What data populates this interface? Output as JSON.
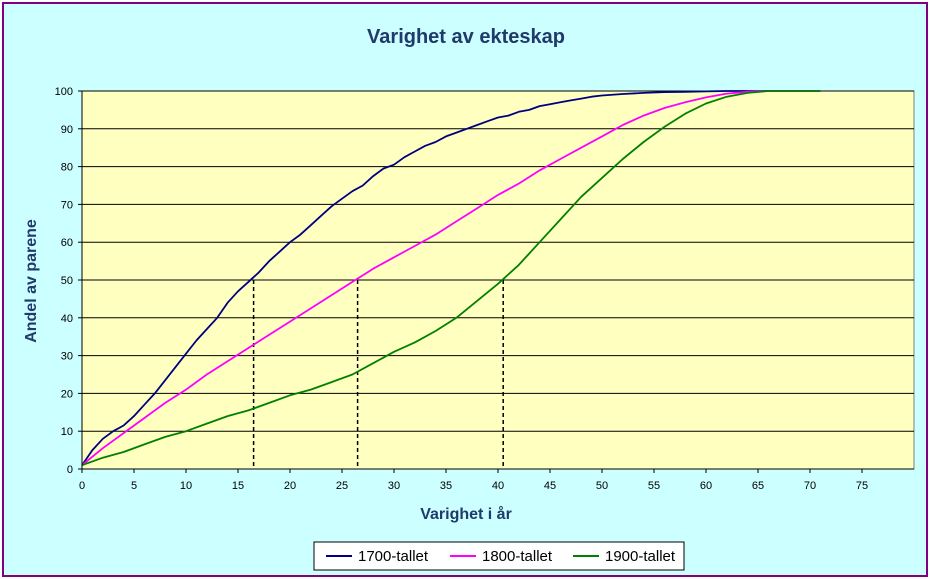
{
  "chart_data": {
    "type": "line",
    "title": "Varighet av ekteskap",
    "xlabel": "Varighet i år",
    "ylabel": "Andel av parene",
    "xlim": [
      0,
      80
    ],
    "ylim": [
      0,
      100
    ],
    "x_ticks": [
      0,
      5,
      10,
      15,
      20,
      25,
      30,
      35,
      40,
      45,
      50,
      55,
      60,
      65,
      70,
      75
    ],
    "y_ticks": [
      0,
      10,
      20,
      30,
      40,
      50,
      60,
      70,
      80,
      90,
      100
    ],
    "grid": "horizontal",
    "legend_position": "bottom",
    "plot_background": "#ffffc0",
    "chart_background": "#ccffff",
    "series": [
      {
        "name": "1700-tallet",
        "color": "#000080",
        "x": [
          0,
          1,
          2,
          3,
          4,
          5,
          6,
          7,
          8,
          9,
          10,
          11,
          12,
          13,
          14,
          15,
          16,
          17,
          18,
          19,
          20,
          21,
          22,
          23,
          24,
          25,
          26,
          27,
          28,
          29,
          30,
          31,
          32,
          33,
          34,
          35,
          36,
          37,
          38,
          39,
          40,
          41,
          42,
          43,
          44,
          45,
          46,
          47,
          48,
          49,
          50,
          52,
          54,
          56,
          58,
          60,
          62,
          64,
          66,
          68,
          70,
          71
        ],
        "y": [
          1,
          5,
          8,
          10,
          11.5,
          14,
          17,
          20,
          23.5,
          27,
          30.5,
          34,
          37,
          40,
          44,
          47,
          49.5,
          52,
          55,
          57.5,
          60,
          62,
          64.5,
          67,
          69.5,
          71.5,
          73.5,
          75,
          77.5,
          79.5,
          80.5,
          82.5,
          84,
          85.5,
          86.5,
          88,
          89,
          90,
          91,
          92,
          93,
          93.5,
          94.5,
          95,
          96,
          96.5,
          97,
          97.5,
          98,
          98.5,
          98.8,
          99.2,
          99.5,
          99.7,
          99.8,
          99.9,
          100,
          100,
          100,
          100,
          100,
          100
        ]
      },
      {
        "name": "1800-tallet",
        "color": "#ff00ff",
        "x": [
          0,
          2,
          4,
          6,
          8,
          10,
          12,
          14,
          16,
          18,
          20,
          22,
          24,
          26,
          28,
          30,
          32,
          34,
          36,
          38,
          40,
          42,
          44,
          46,
          48,
          50,
          52,
          54,
          56,
          58,
          60,
          62,
          64,
          66,
          68,
          70,
          71
        ],
        "y": [
          1,
          5.5,
          9.5,
          13.5,
          17.5,
          21,
          25,
          28.5,
          32,
          35.5,
          39,
          42.5,
          46,
          49.5,
          53,
          56,
          59,
          62,
          65.5,
          69,
          72.5,
          75.5,
          79,
          82,
          85,
          88,
          91,
          93.5,
          95.5,
          97,
          98.3,
          99.3,
          99.8,
          100,
          100,
          100,
          100
        ]
      },
      {
        "name": "1900-tallet",
        "color": "#008000",
        "x": [
          0,
          2,
          4,
          6,
          8,
          10,
          12,
          14,
          16,
          18,
          20,
          22,
          24,
          26,
          28,
          30,
          32,
          34,
          36,
          38,
          40,
          42,
          44,
          46,
          48,
          50,
          52,
          54,
          56,
          58,
          60,
          62,
          64,
          66,
          68,
          70,
          71
        ],
        "y": [
          1,
          3,
          4.5,
          6.5,
          8.5,
          10,
          12,
          14,
          15.5,
          17.5,
          19.5,
          21,
          23,
          25,
          28,
          31,
          33.5,
          36.5,
          40,
          44.5,
          49,
          54,
          60,
          66,
          72,
          77,
          82,
          86.5,
          90.5,
          94,
          96.7,
          98.5,
          99.5,
          100,
          100,
          100,
          100
        ]
      }
    ],
    "annotations": [
      {
        "x": 16.5,
        "y": 50,
        "style": "dashed-vertical"
      },
      {
        "x": 26.5,
        "y": 50,
        "style": "dashed-vertical"
      },
      {
        "x": 40.5,
        "y": 50,
        "style": "dashed-vertical"
      }
    ]
  }
}
